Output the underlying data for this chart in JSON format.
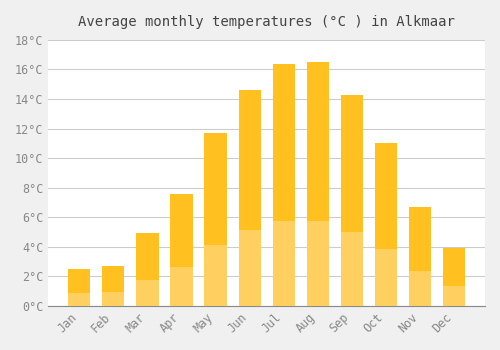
{
  "title": "Average monthly temperatures (°C ) in Alkmaar",
  "months": [
    "Jan",
    "Feb",
    "Mar",
    "Apr",
    "May",
    "Jun",
    "Jul",
    "Aug",
    "Sep",
    "Oct",
    "Nov",
    "Dec"
  ],
  "temperatures": [
    2.5,
    2.7,
    4.9,
    7.6,
    11.7,
    14.6,
    16.4,
    16.5,
    14.3,
    11.0,
    6.7,
    3.9
  ],
  "bar_color_top": "#FFC020",
  "bar_color_bottom": "#FFD060",
  "background_color": "#F0F0F0",
  "plot_bg_color": "#FFFFFF",
  "grid_color": "#CCCCCC",
  "tick_label_color": "#888888",
  "title_color": "#444444",
  "ylim": [
    0,
    18
  ],
  "yticks": [
    0,
    2,
    4,
    6,
    8,
    10,
    12,
    14,
    16,
    18
  ]
}
